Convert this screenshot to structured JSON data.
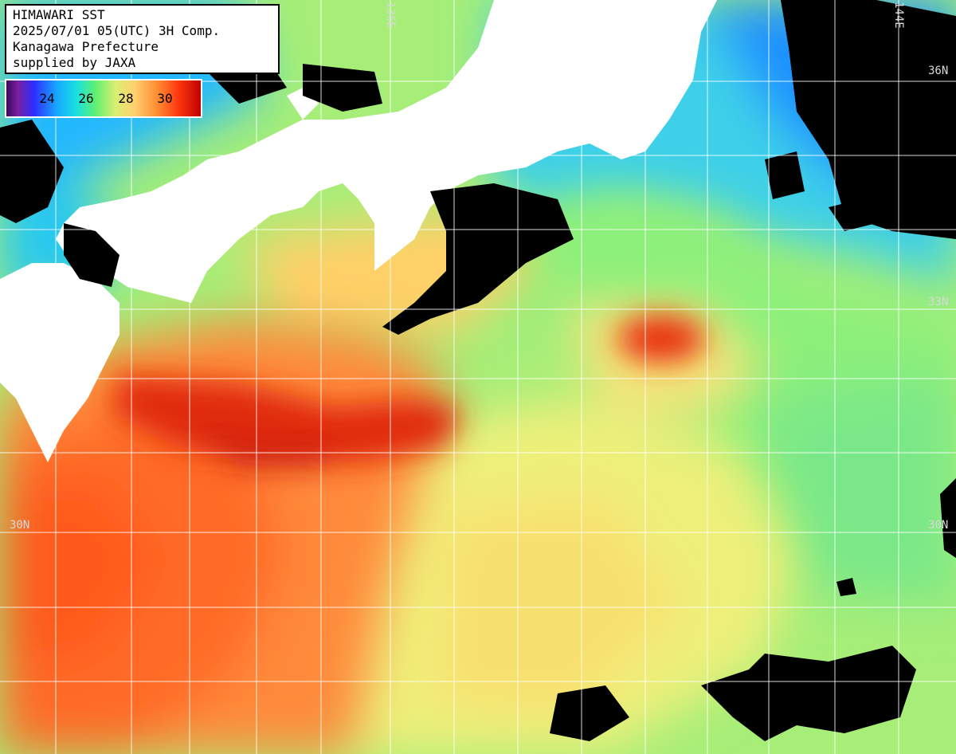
{
  "info": {
    "line1": "HIMAWARI SST",
    "line2": "2025/07/01 05(UTC) 3H Comp.",
    "line3": "Kanagawa Prefecture",
    "line4": "supplied by JAXA"
  },
  "colorbar": {
    "ticks": [
      "24",
      "26",
      "28",
      "30"
    ]
  },
  "grid_labels": {
    "lat_36_right": "36N",
    "lat_33_right": "33N",
    "lat_30_left": "30N",
    "lat_30_right": "30N",
    "lon_136": "136E",
    "lon_144": "144E"
  },
  "colors": {
    "land": "#ffffff",
    "cloud": "#000000",
    "cool_water": "#1ec8ff",
    "mid_water": "#8cf07a",
    "warm_water": "#ffd060",
    "hot_water": "#ff5a1a",
    "hottest_water": "#d41a0a"
  }
}
